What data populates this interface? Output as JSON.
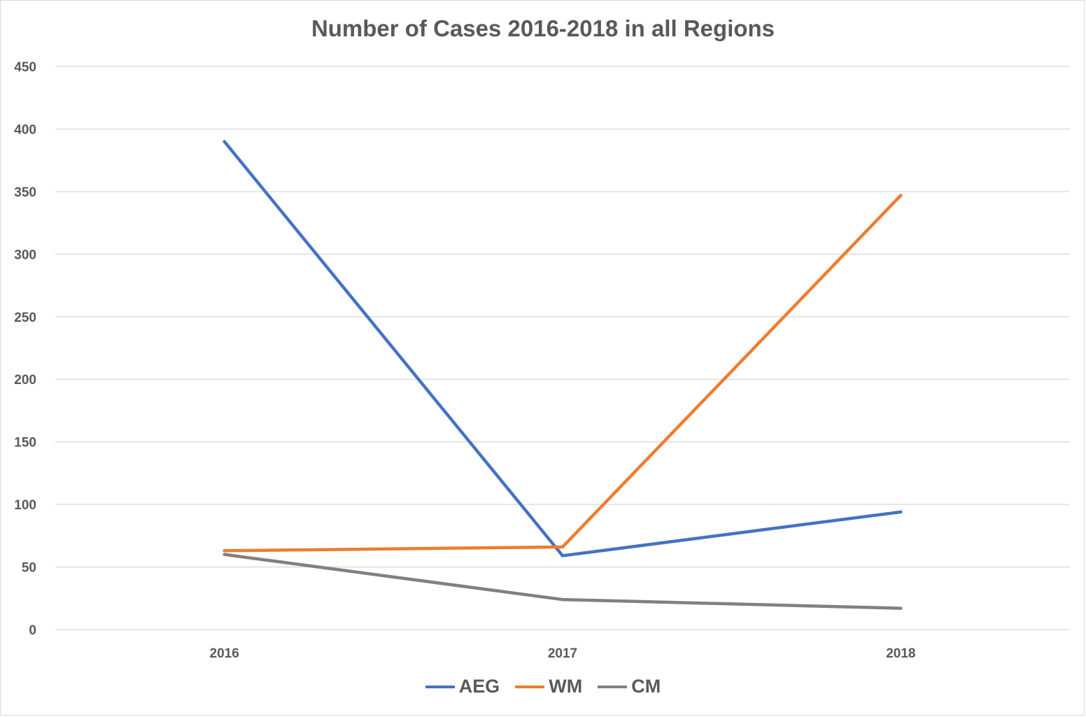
{
  "chart_data": {
    "type": "line",
    "title": "Number of Cases 2016-2018 in all Regions",
    "xlabel": "",
    "ylabel": "",
    "categories": [
      "2016",
      "2017",
      "2018"
    ],
    "ylim": [
      0,
      450
    ],
    "yticks": [
      0,
      50,
      100,
      150,
      200,
      250,
      300,
      350,
      400,
      450
    ],
    "grid": true,
    "legend_position": "bottom",
    "series": [
      {
        "name": "AEG",
        "color": "#4472c4",
        "values": [
          390,
          59,
          94
        ]
      },
      {
        "name": "WM",
        "color": "#ed7d31",
        "values": [
          63,
          66,
          347
        ]
      },
      {
        "name": "CM",
        "color": "#808080",
        "values": [
          60,
          24,
          17
        ]
      }
    ]
  }
}
